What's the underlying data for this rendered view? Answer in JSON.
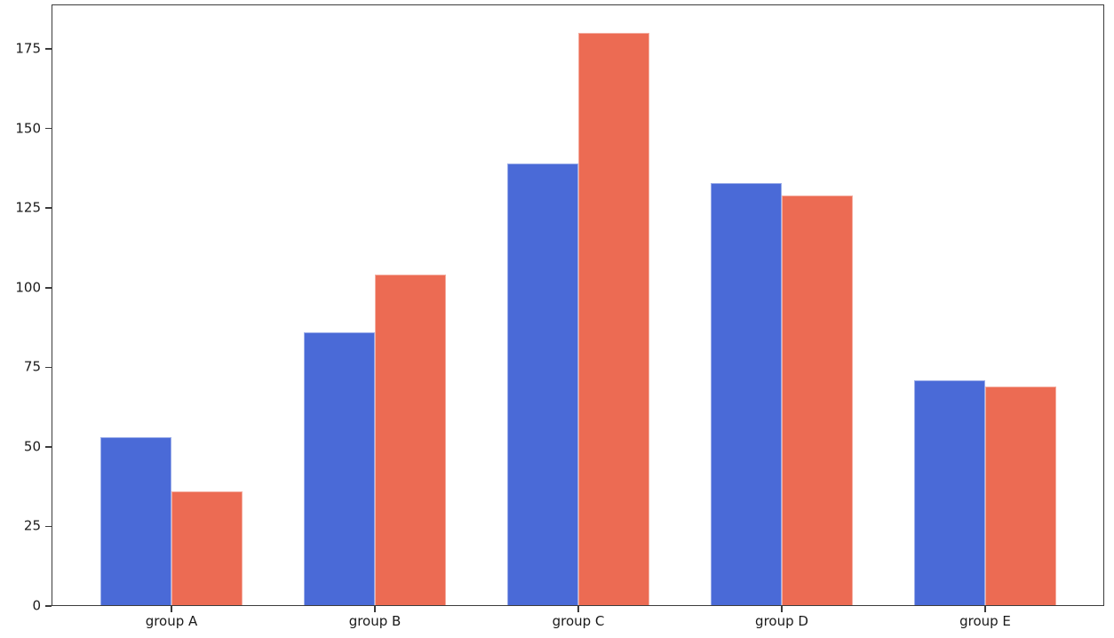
{
  "figure": {
    "background_color": "#ffffff",
    "text_color": "#1a1a1a",
    "axis_color": "#3c3c3c"
  },
  "chart_data": {
    "type": "bar",
    "title": "",
    "xlabel": "",
    "ylabel": "",
    "categories": [
      "group A",
      "group B",
      "group C",
      "group D",
      "group E"
    ],
    "series": [
      {
        "name": "blue",
        "color": "#4a6ad7",
        "values": [
          53,
          86,
          139,
          133,
          71
        ]
      },
      {
        "name": "orange",
        "color": "#ec6b53",
        "values": [
          36,
          104,
          180,
          129,
          69
        ]
      }
    ],
    "ylim": [
      0,
      189
    ],
    "yticks": [
      0,
      25,
      50,
      75,
      100,
      125,
      150,
      175
    ],
    "grid": false,
    "legend": "none"
  }
}
